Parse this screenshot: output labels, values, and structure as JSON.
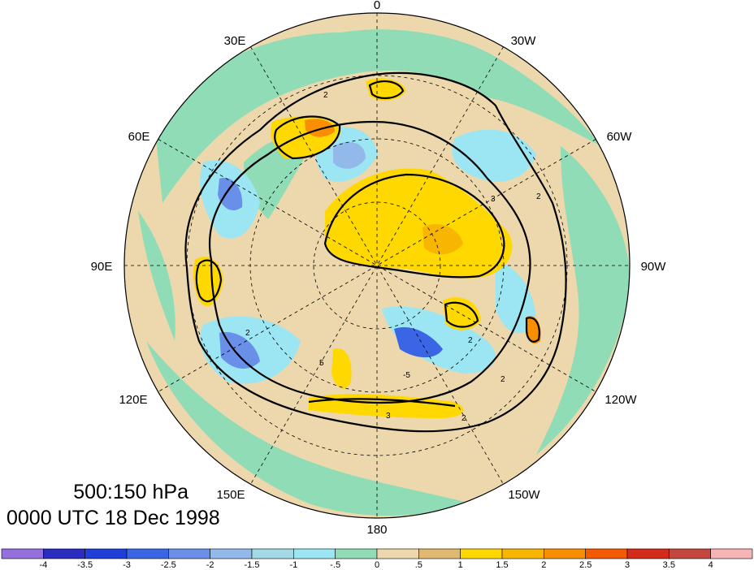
{
  "map": {
    "projection": "north polar stereographic",
    "longitude_labels": [
      "0",
      "30W",
      "60W",
      "90W",
      "120W",
      "150W",
      "180",
      "150E",
      "120E",
      "90E",
      "60E",
      "30E"
    ],
    "contour_labels": [
      "2",
      "2",
      "2",
      "2",
      "3",
      "3",
      "2",
      "2",
      "5",
      "-5"
    ]
  },
  "info": {
    "level": "500:150 hPa",
    "time": "0000 UTC 18 Dec 1998"
  },
  "colorbar": {
    "ticks": [
      "-4",
      "-3.5",
      "-3",
      "-2.5",
      "-2",
      "-1.5",
      "-1",
      "-.5",
      "0",
      ".5",
      "1",
      "1.5",
      "2",
      "2.5",
      "3",
      "3.5",
      "4"
    ],
    "colors": [
      "#9370db",
      "#2b2bbf",
      "#1e3fd8",
      "#3a66e6",
      "#6a8fe8",
      "#93b8ea",
      "#a4d9e6",
      "#9be6f2",
      "#8fdcb6",
      "#ecd8ac",
      "#e0b870",
      "#ffd800",
      "#f9b600",
      "#f98f00",
      "#f45a00",
      "#d42b1a",
      "#c4473f",
      "#f7b4b4"
    ]
  }
}
